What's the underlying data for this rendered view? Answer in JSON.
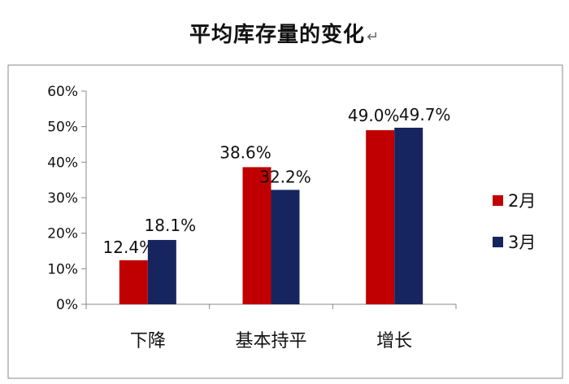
{
  "chart_data": {
    "type": "bar",
    "title": "平均库存量的变化",
    "categories": [
      "下降",
      "基本持平",
      "增长"
    ],
    "series": [
      {
        "name": "2月",
        "values": [
          12.4,
          38.6,
          49.0
        ],
        "labels": [
          "12.4%",
          "38.6%",
          "49.0%"
        ],
        "color": "#C00000"
      },
      {
        "name": "3月",
        "values": [
          18.1,
          32.2,
          49.7
        ],
        "labels": [
          "18.1%",
          "32.2%",
          "49.7%"
        ],
        "color": "#17255F"
      }
    ],
    "ylim": [
      0,
      60
    ],
    "yticks": [
      0,
      10,
      20,
      30,
      40,
      50,
      60
    ],
    "ytick_labels": [
      "0%",
      "10%",
      "20%",
      "30%",
      "40%",
      "50%",
      "60%"
    ],
    "xlabel": "",
    "ylabel": "",
    "grid": false,
    "legend": "right"
  }
}
